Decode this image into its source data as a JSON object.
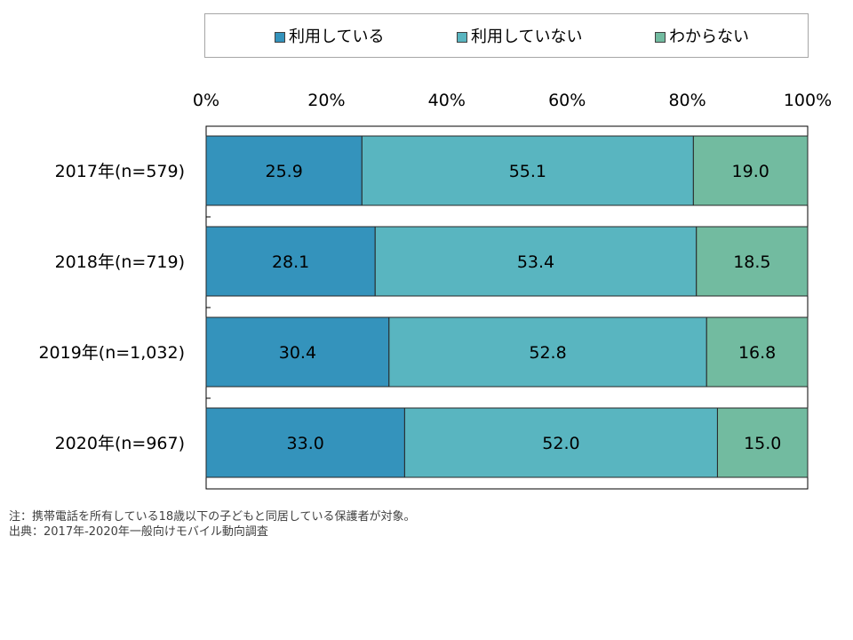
{
  "legend": {
    "items": [
      {
        "label": "利用している",
        "color": "#3493bc"
      },
      {
        "label": "利用していない",
        "color": "#59b5c0"
      },
      {
        "label": "わからない",
        "color": "#72bba0"
      }
    ]
  },
  "chart_data": {
    "type": "bar",
    "orientation": "horizontal",
    "stacked": true,
    "percent_scale": true,
    "categories": [
      "2017年(n=579)",
      "2018年(n=719)",
      "2019年(n=1,032)",
      "2020年(n=967)"
    ],
    "series": [
      {
        "name": "利用している",
        "values": [
          25.9,
          28.1,
          30.4,
          33.0
        ],
        "color": "#3493bc"
      },
      {
        "name": "利用していない",
        "values": [
          55.1,
          53.4,
          52.8,
          52.0
        ],
        "color": "#59b5c0"
      },
      {
        "name": "わからない",
        "values": [
          19.0,
          18.5,
          16.8,
          15.0
        ],
        "color": "#72bba0"
      }
    ],
    "value_labels": [
      [
        "25.9",
        "28.1",
        "30.4",
        "33.0"
      ],
      [
        "55.1",
        "53.4",
        "52.8",
        "52.0"
      ],
      [
        "19.0",
        "18.5",
        "16.8",
        "15.0"
      ]
    ],
    "xlim": [
      0,
      100
    ],
    "x_ticks": [
      "0%",
      "20%",
      "40%",
      "60%",
      "80%",
      "100%"
    ],
    "axis_position": "top",
    "legend_position": "top",
    "grid": false
  },
  "notes": {
    "note1": "注：携帯電話を所有している18歳以下の子どもと同居している保護者が対象。",
    "note2": "出典：2017年-2020年一般向けモバイル動向調査"
  }
}
